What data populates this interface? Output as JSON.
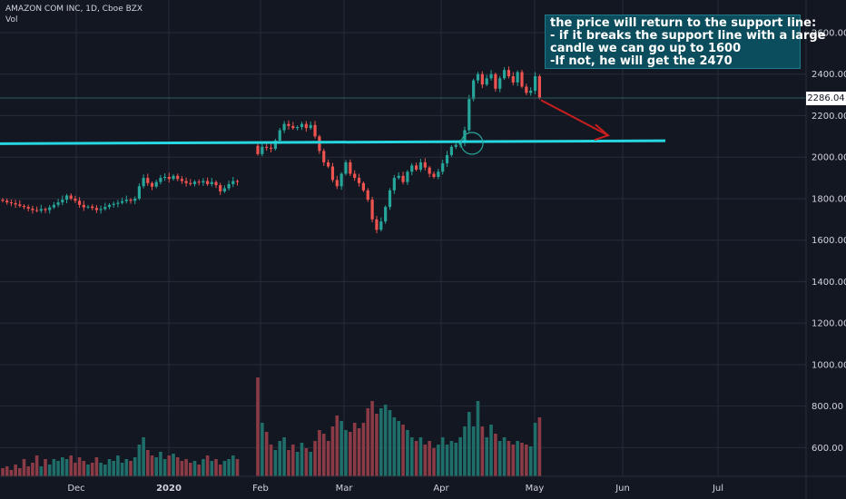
{
  "chart_data": {
    "type": "candlestick",
    "title": "AMAZON COM INC, 1D, Cboe BZX",
    "subtitle": "Vol",
    "x_ticks": [
      "Dec",
      "2020",
      "Feb",
      "Mar",
      "Apr",
      "May",
      "Jun",
      "Jul"
    ],
    "y_ticks": [
      "2600.00",
      "2400.00",
      "2200.00",
      "2000.00",
      "1800.00",
      "1600.00",
      "1400.00",
      "1200.00",
      "1000.00",
      "800.00",
      "600.00"
    ],
    "ylim": [
      420,
      2680
    ],
    "last_price": "2286.04",
    "support_line": {
      "from": 2065,
      "to": 2079
    },
    "target_arrow": {
      "from": 2275,
      "to": 2105
    },
    "annotation": [
      "the price will return to the support line:",
      "- if it breaks the support line with a large",
      "candle we can go up to 1600",
      "-If not, he will get the 2470"
    ],
    "candles": [
      {
        "o": 1795,
        "c": 1790,
        "v": 550
      },
      {
        "o": 1790,
        "c": 1782,
        "v": 560
      },
      {
        "o": 1782,
        "c": 1778,
        "v": 540
      },
      {
        "o": 1778,
        "c": 1772,
        "v": 570
      },
      {
        "o": 1772,
        "c": 1765,
        "v": 550
      },
      {
        "o": 1765,
        "c": 1760,
        "v": 600
      },
      {
        "o": 1760,
        "c": 1752,
        "v": 560
      },
      {
        "o": 1752,
        "c": 1745,
        "v": 580
      },
      {
        "o": 1745,
        "c": 1742,
        "v": 620
      },
      {
        "o": 1742,
        "c": 1750,
        "v": 560
      },
      {
        "o": 1750,
        "c": 1745,
        "v": 600
      },
      {
        "o": 1745,
        "c": 1758,
        "v": 570
      },
      {
        "o": 1758,
        "c": 1770,
        "v": 600
      },
      {
        "o": 1770,
        "c": 1782,
        "v": 590
      },
      {
        "o": 1782,
        "c": 1795,
        "v": 610
      },
      {
        "o": 1795,
        "c": 1815,
        "v": 600
      },
      {
        "o": 1815,
        "c": 1800,
        "v": 620
      },
      {
        "o": 1800,
        "c": 1790,
        "v": 580
      },
      {
        "o": 1790,
        "c": 1770,
        "v": 610
      },
      {
        "o": 1770,
        "c": 1758,
        "v": 590
      },
      {
        "o": 1758,
        "c": 1762,
        "v": 570
      },
      {
        "o": 1762,
        "c": 1755,
        "v": 580
      },
      {
        "o": 1755,
        "c": 1745,
        "v": 610
      },
      {
        "o": 1745,
        "c": 1750,
        "v": 580
      },
      {
        "o": 1750,
        "c": 1760,
        "v": 570
      },
      {
        "o": 1760,
        "c": 1770,
        "v": 600
      },
      {
        "o": 1770,
        "c": 1775,
        "v": 590
      },
      {
        "o": 1775,
        "c": 1780,
        "v": 620
      },
      {
        "o": 1780,
        "c": 1788,
        "v": 580
      },
      {
        "o": 1788,
        "c": 1795,
        "v": 600
      },
      {
        "o": 1795,
        "c": 1790,
        "v": 590
      },
      {
        "o": 1790,
        "c": 1800,
        "v": 610
      },
      {
        "o": 1800,
        "c": 1860,
        "v": 680
      },
      {
        "o": 1860,
        "c": 1900,
        "v": 720
      },
      {
        "o": 1900,
        "c": 1875,
        "v": 650
      },
      {
        "o": 1875,
        "c": 1858,
        "v": 620
      },
      {
        "o": 1858,
        "c": 1880,
        "v": 610
      },
      {
        "o": 1880,
        "c": 1900,
        "v": 640
      },
      {
        "o": 1900,
        "c": 1905,
        "v": 600
      },
      {
        "o": 1905,
        "c": 1895,
        "v": 620
      },
      {
        "o": 1895,
        "c": 1910,
        "v": 630
      },
      {
        "o": 1910,
        "c": 1895,
        "v": 610
      },
      {
        "o": 1895,
        "c": 1885,
        "v": 590
      },
      {
        "o": 1885,
        "c": 1875,
        "v": 600
      },
      {
        "o": 1875,
        "c": 1870,
        "v": 580
      },
      {
        "o": 1870,
        "c": 1882,
        "v": 590
      },
      {
        "o": 1882,
        "c": 1878,
        "v": 570
      },
      {
        "o": 1878,
        "c": 1885,
        "v": 600
      },
      {
        "o": 1885,
        "c": 1870,
        "v": 620
      },
      {
        "o": 1870,
        "c": 1880,
        "v": 590
      },
      {
        "o": 1880,
        "c": 1865,
        "v": 600
      },
      {
        "o": 1865,
        "c": 1835,
        "v": 570
      },
      {
        "o": 1835,
        "c": 1850,
        "v": 590
      },
      {
        "o": 1850,
        "c": 1870,
        "v": 600
      },
      {
        "o": 1870,
        "c": 1885,
        "v": 620
      },
      {
        "o": 1885,
        "c": 1880,
        "v": 600
      },
      {
        "o": 2055,
        "c": 2015,
        "v": 1050
      },
      {
        "o": 2015,
        "c": 2050,
        "v": 800
      },
      {
        "o": 2050,
        "c": 2045,
        "v": 750
      },
      {
        "o": 2045,
        "c": 2040,
        "v": 680
      },
      {
        "o": 2040,
        "c": 2080,
        "v": 650
      },
      {
        "o": 2080,
        "c": 2130,
        "v": 700
      },
      {
        "o": 2130,
        "c": 2160,
        "v": 720
      },
      {
        "o": 2160,
        "c": 2150,
        "v": 650
      },
      {
        "o": 2150,
        "c": 2140,
        "v": 680
      },
      {
        "o": 2140,
        "c": 2145,
        "v": 640
      },
      {
        "o": 2145,
        "c": 2160,
        "v": 690
      },
      {
        "o": 2160,
        "c": 2140,
        "v": 660
      },
      {
        "o": 2140,
        "c": 2155,
        "v": 640
      },
      {
        "o": 2155,
        "c": 2100,
        "v": 700
      },
      {
        "o": 2100,
        "c": 2030,
        "v": 760
      },
      {
        "o": 2030,
        "c": 1975,
        "v": 740
      },
      {
        "o": 1975,
        "c": 1955,
        "v": 700
      },
      {
        "o": 1955,
        "c": 1890,
        "v": 780
      },
      {
        "o": 1890,
        "c": 1860,
        "v": 840
      },
      {
        "o": 1860,
        "c": 1920,
        "v": 810
      },
      {
        "o": 1920,
        "c": 1975,
        "v": 760
      },
      {
        "o": 1975,
        "c": 1920,
        "v": 750
      },
      {
        "o": 1920,
        "c": 1900,
        "v": 800
      },
      {
        "o": 1900,
        "c": 1875,
        "v": 770
      },
      {
        "o": 1875,
        "c": 1840,
        "v": 800
      },
      {
        "o": 1840,
        "c": 1795,
        "v": 880
      },
      {
        "o": 1795,
        "c": 1700,
        "v": 920
      },
      {
        "o": 1700,
        "c": 1650,
        "v": 850
      },
      {
        "o": 1650,
        "c": 1690,
        "v": 880
      },
      {
        "o": 1690,
        "c": 1760,
        "v": 900
      },
      {
        "o": 1760,
        "c": 1840,
        "v": 870
      },
      {
        "o": 1840,
        "c": 1900,
        "v": 830
      },
      {
        "o": 1900,
        "c": 1910,
        "v": 810
      },
      {
        "o": 1910,
        "c": 1880,
        "v": 790
      },
      {
        "o": 1880,
        "c": 1930,
        "v": 760
      },
      {
        "o": 1930,
        "c": 1960,
        "v": 720
      },
      {
        "o": 1960,
        "c": 1940,
        "v": 700
      },
      {
        "o": 1940,
        "c": 1975,
        "v": 720
      },
      {
        "o": 1975,
        "c": 1950,
        "v": 680
      },
      {
        "o": 1950,
        "c": 1920,
        "v": 700
      },
      {
        "o": 1920,
        "c": 1905,
        "v": 660
      },
      {
        "o": 1905,
        "c": 1930,
        "v": 680
      },
      {
        "o": 1930,
        "c": 1970,
        "v": 720
      },
      {
        "o": 1970,
        "c": 2010,
        "v": 680
      },
      {
        "o": 2010,
        "c": 2050,
        "v": 700
      },
      {
        "o": 2050,
        "c": 2060,
        "v": 690
      },
      {
        "o": 2060,
        "c": 2070,
        "v": 720
      },
      {
        "o": 2070,
        "c": 2130,
        "v": 780
      },
      {
        "o": 2130,
        "c": 2280,
        "v": 860
      },
      {
        "o": 2280,
        "c": 2370,
        "v": 780
      },
      {
        "o": 2370,
        "c": 2400,
        "v": 920
      },
      {
        "o": 2400,
        "c": 2350,
        "v": 780
      },
      {
        "o": 2350,
        "c": 2380,
        "v": 720
      },
      {
        "o": 2380,
        "c": 2400,
        "v": 790
      },
      {
        "o": 2400,
        "c": 2330,
        "v": 740
      },
      {
        "o": 2330,
        "c": 2380,
        "v": 700
      },
      {
        "o": 2380,
        "c": 2420,
        "v": 720
      },
      {
        "o": 2420,
        "c": 2390,
        "v": 700
      },
      {
        "o": 2390,
        "c": 2360,
        "v": 680
      },
      {
        "o": 2360,
        "c": 2410,
        "v": 700
      },
      {
        "o": 2410,
        "c": 2340,
        "v": 690
      },
      {
        "o": 2340,
        "c": 2310,
        "v": 680
      },
      {
        "o": 2310,
        "c": 2320,
        "v": 670
      },
      {
        "o": 2320,
        "c": 2390,
        "v": 800
      },
      {
        "o": 2390,
        "c": 2286,
        "v": 830
      }
    ],
    "colors": {
      "up": "#26a69a",
      "down": "#ef5350",
      "vol_up": "#1f6e6a",
      "vol_down": "#8a3b45",
      "support": "#27d7e0",
      "arrow": "#c81e1e",
      "grid": "#262b38",
      "text": "#d1d4dc"
    }
  }
}
